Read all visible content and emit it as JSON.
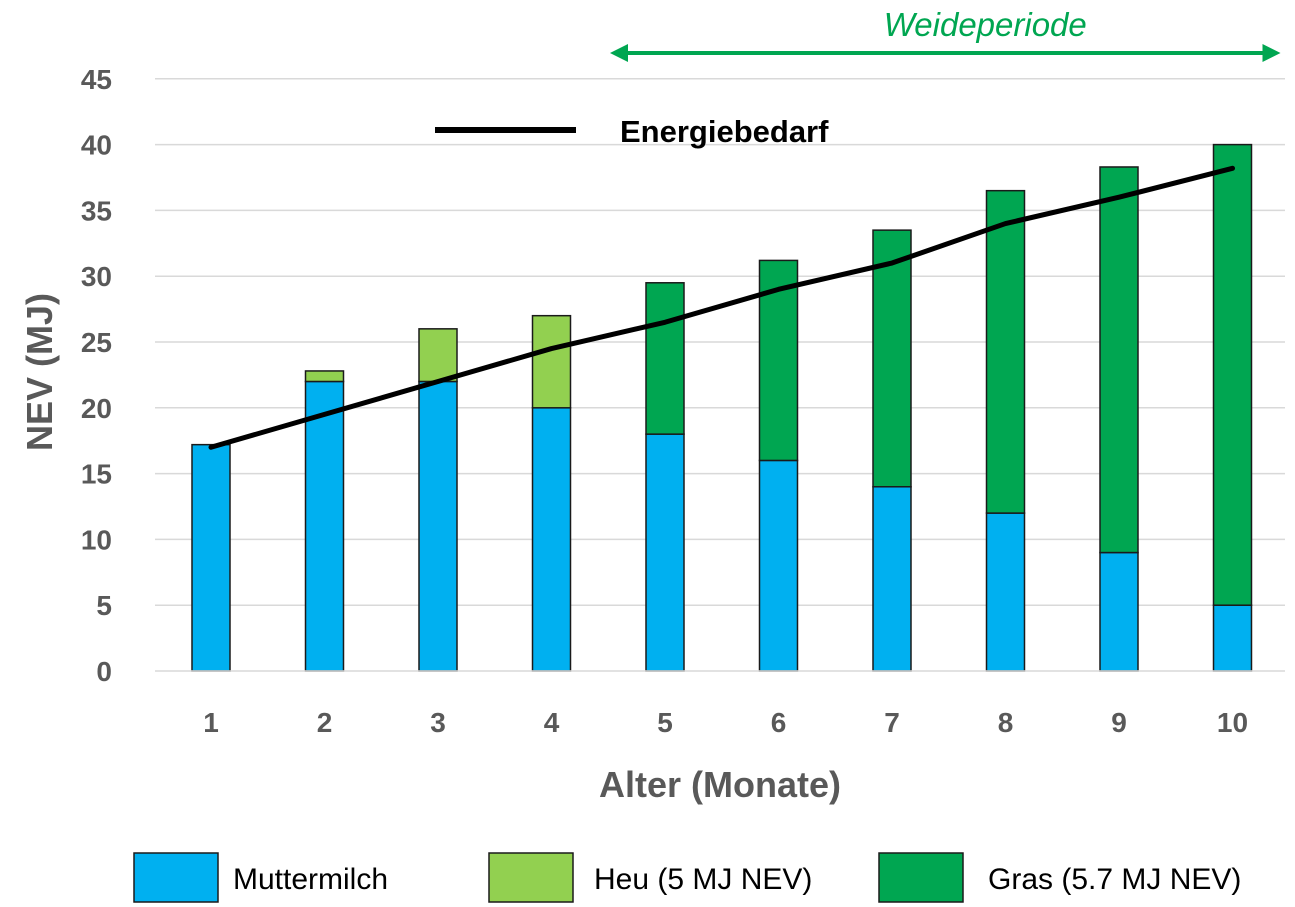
{
  "chart_data": {
    "type": "bar",
    "stacked": true,
    "categories": [
      "1",
      "2",
      "3",
      "4",
      "5",
      "6",
      "7",
      "8",
      "9",
      "10"
    ],
    "series": [
      {
        "name": "Muttermilch",
        "color": "#00b0f0",
        "values": [
          17.2,
          22,
          22,
          20,
          18,
          16,
          14,
          12,
          9,
          5
        ]
      },
      {
        "name": "Heu (5 MJ NEV)",
        "color": "#92d050",
        "values": [
          0,
          0.8,
          4,
          7,
          0,
          0,
          0,
          0,
          0,
          0
        ]
      },
      {
        "name": "Gras (5.7 MJ NEV)",
        "color": "#00a651",
        "values": [
          0,
          0,
          0,
          0,
          11.5,
          15.2,
          19.5,
          24.5,
          29.3,
          35
        ]
      }
    ],
    "line_series": {
      "name": "Energiebedarf",
      "color": "#000000",
      "values": [
        17,
        19.5,
        22,
        24.5,
        26.5,
        29,
        31,
        34,
        36,
        38.2
      ]
    },
    "annotation": {
      "label": "Weideperiode",
      "color": "#00a651",
      "from_category": "5",
      "to_category": "10"
    },
    "xlabel": "Alter (Monate)",
    "ylabel": "NEV (MJ)",
    "ylim": [
      0,
      45
    ],
    "yticks": [
      0,
      5,
      10,
      15,
      20,
      25,
      30,
      35,
      40,
      45
    ],
    "grid": true,
    "legend_position": "bottom"
  }
}
